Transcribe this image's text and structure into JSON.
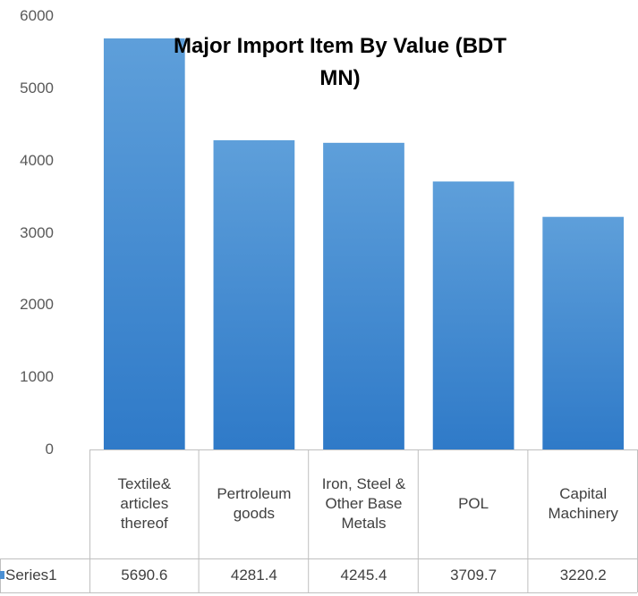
{
  "chart_data": {
    "type": "bar",
    "title": "Major Import Item By Value (BDT MN)",
    "categories": [
      "Textile& articles thereof",
      "Pertroleum goods",
      "Iron, Steel & Other Base Metals",
      "POL",
      "Capital Machinery"
    ],
    "series": [
      {
        "name": "Series1",
        "color": "#4a8fd3",
        "values": [
          5690.6,
          4281.4,
          4245.4,
          3709.7,
          3220.2
        ]
      }
    ],
    "ylim": [
      0,
      6000
    ],
    "yticks": [
      0,
      1000,
      2000,
      3000,
      4000,
      5000,
      6000
    ]
  }
}
